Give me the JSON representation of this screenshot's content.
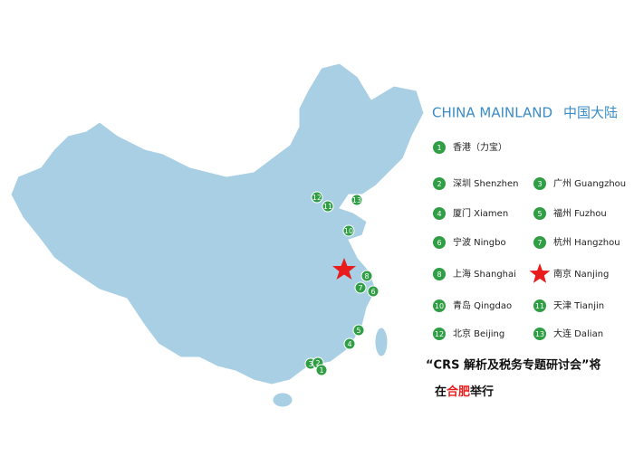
{
  "title_en": "CHINA MAINLAND",
  "title_zh": "中国大陆",
  "legend": [
    {
      "number": 1,
      "label": "香港（力宝）"
    },
    {
      "number": 2,
      "label": "深圳 Shenzhen"
    },
    {
      "number": 3,
      "label": "广州 Guangzhou"
    },
    {
      "number": 4,
      "label": "厦门 Xiamen"
    },
    {
      "number": 5,
      "label": "福州 Fuzhou"
    },
    {
      "number": 6,
      "label": "宁波 Ningbo"
    },
    {
      "number": 7,
      "label": "杭州 Hangzhou"
    },
    {
      "number": 8,
      "label": "上海 Shanghai"
    },
    {
      "label": "南京 Nanjing"
    },
    {
      "number": 10,
      "label": "青岛 Qingdao"
    },
    {
      "number": 11,
      "label": "天津 Tianjin"
    },
    {
      "number": 12,
      "label": "北京 Beijing"
    },
    {
      "number": 13,
      "label": "大连 Dalian"
    }
  ],
  "map_markers": [
    12,
    11,
    13,
    10,
    8,
    7,
    6,
    5,
    4,
    3,
    2,
    1
  ],
  "note": {
    "line1": "“CRS 解析及税务专题研讨会”将",
    "line2_prefix": "在",
    "line2_highlight": "合肥",
    "line2_suffix": "举行"
  }
}
